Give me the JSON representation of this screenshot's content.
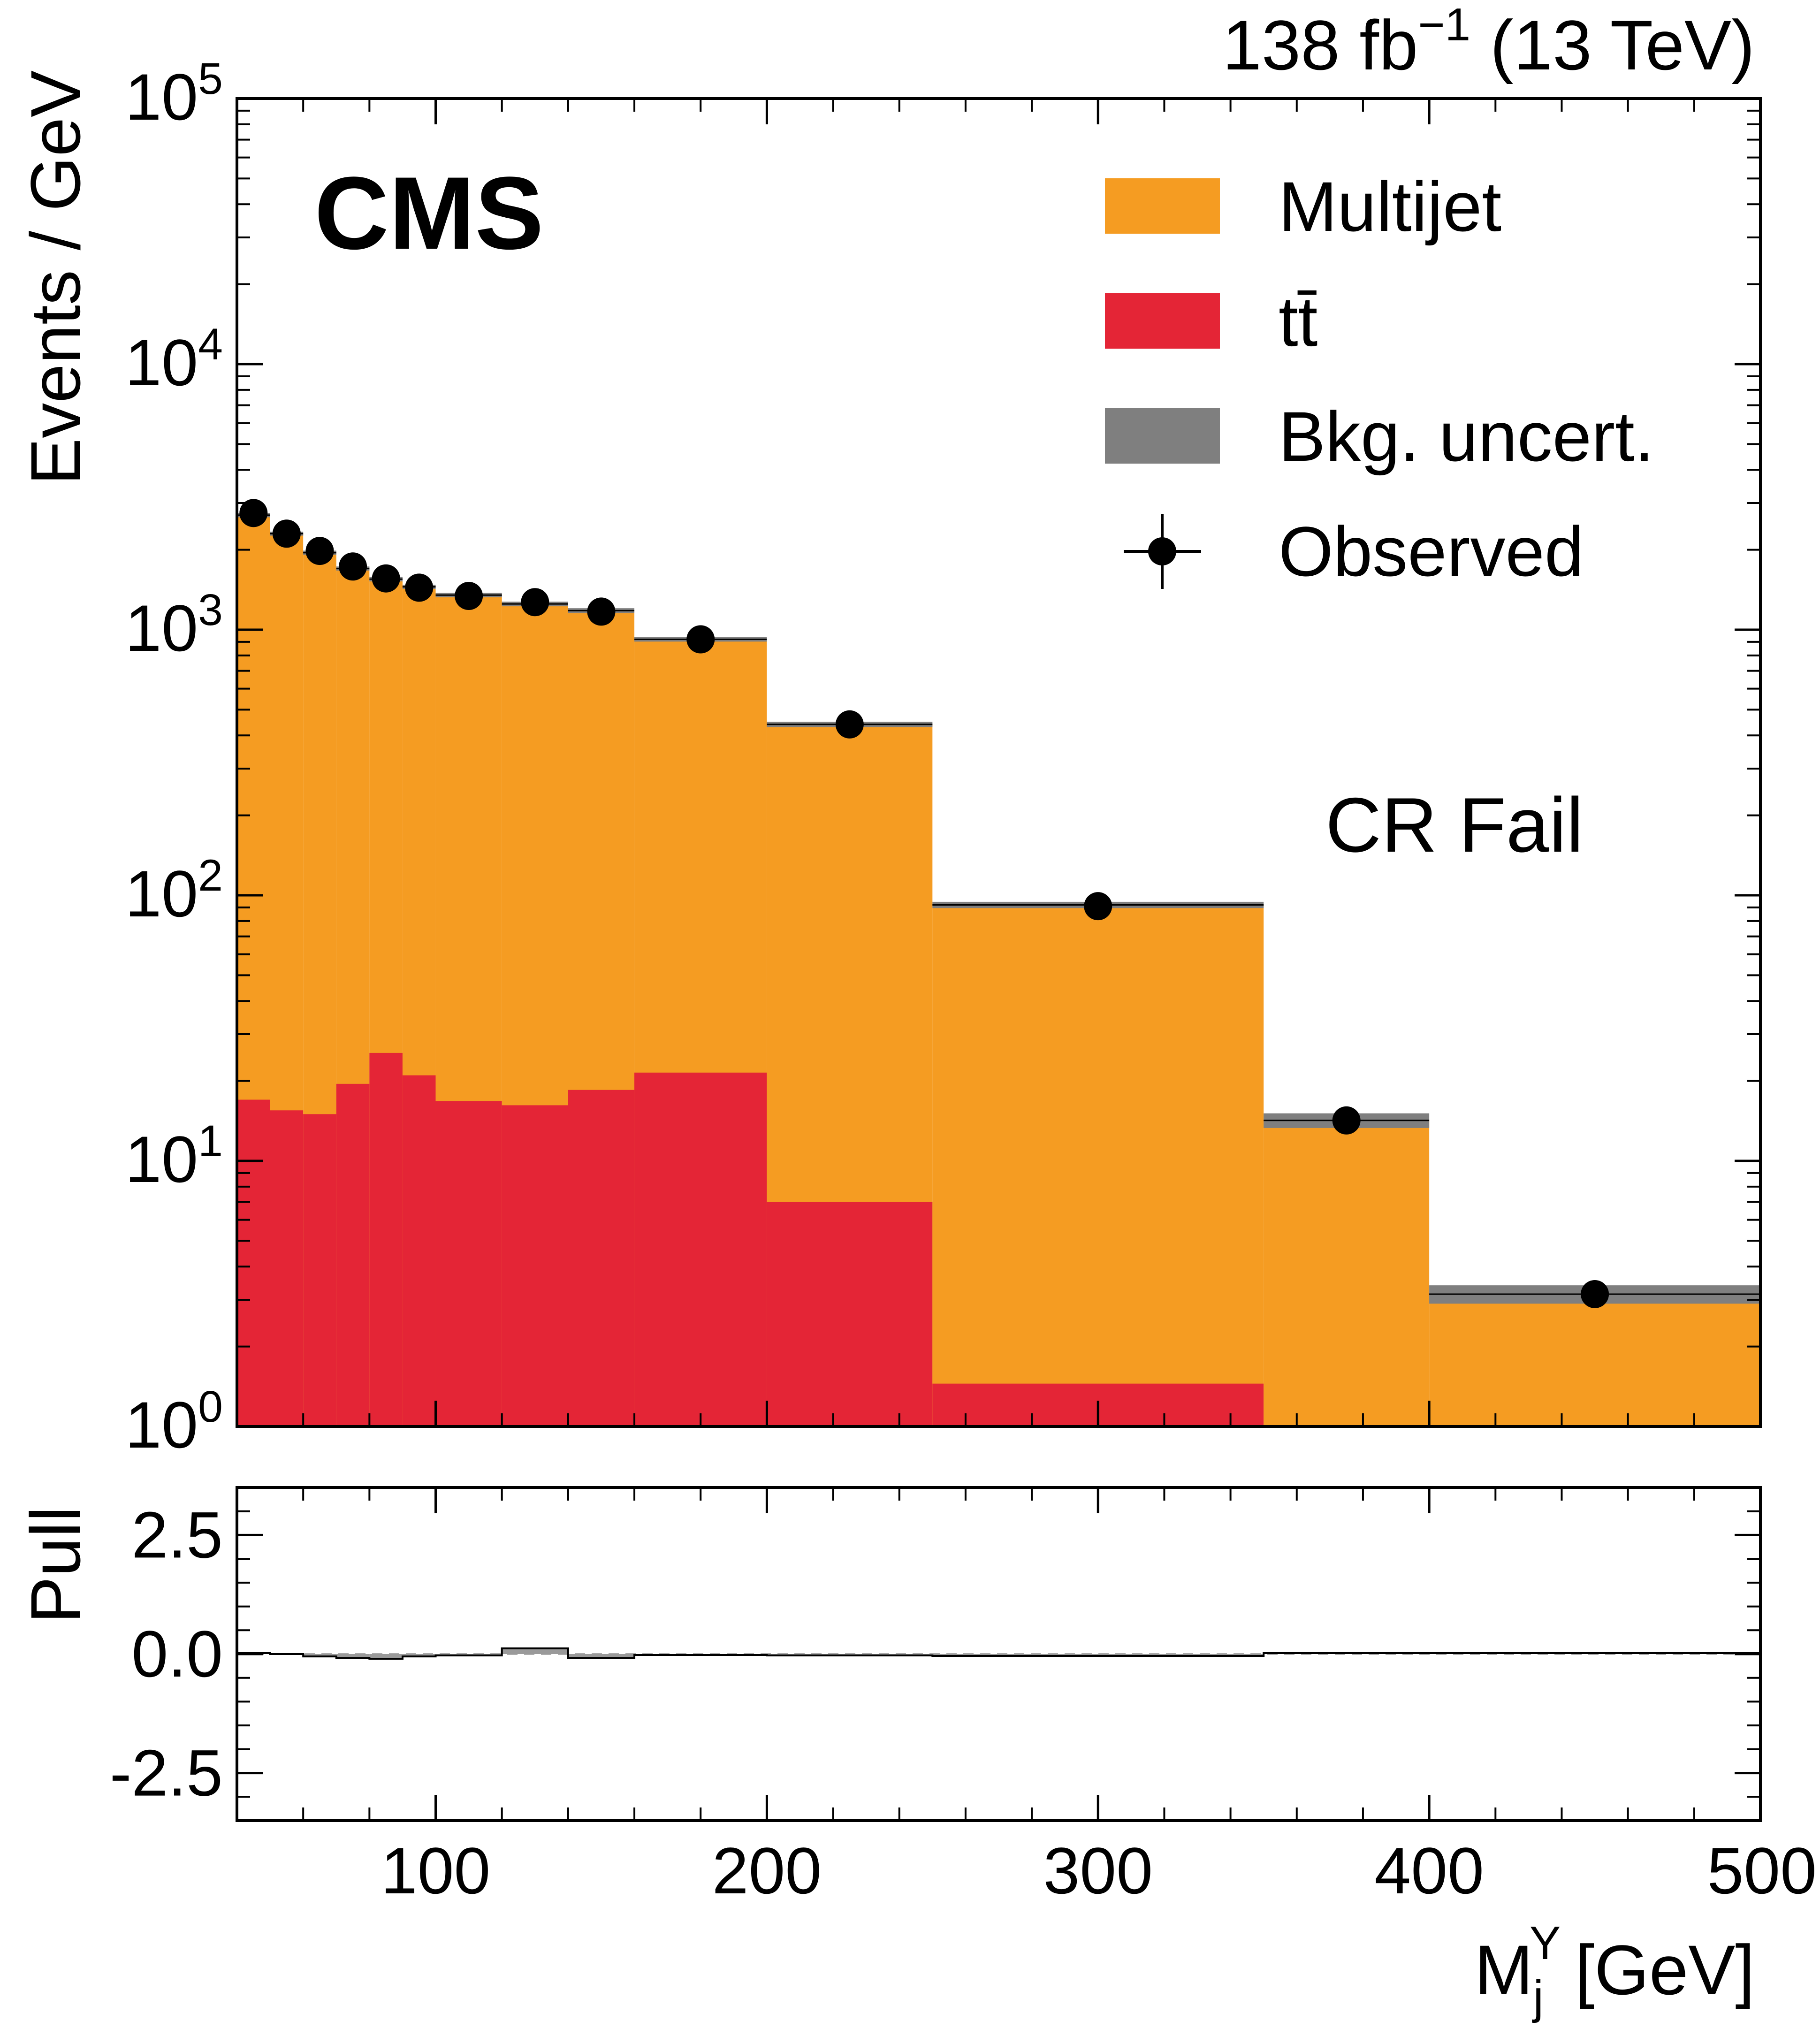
{
  "chart_data": [
    {
      "panel": "main",
      "type": "bar",
      "lumi_label": "138 fb",
      "lumi_exponent": "−1",
      "lumi_energy": "(13 TeV)",
      "experiment_label": "CMS",
      "region_label": "CR Fail",
      "ylabel": "Events / GeV",
      "yscale": "log",
      "ylim": [
        1,
        100000
      ],
      "xlim": [
        40,
        500
      ],
      "y_ticks": [
        {
          "base": "10",
          "exp": "0",
          "value": 1
        },
        {
          "base": "10",
          "exp": "1",
          "value": 10
        },
        {
          "base": "10",
          "exp": "2",
          "value": 100
        },
        {
          "base": "10",
          "exp": "3",
          "value": 1000
        },
        {
          "base": "10",
          "exp": "4",
          "value": 10000
        },
        {
          "base": "10",
          "exp": "5",
          "value": 100000
        }
      ],
      "bin_edges": [
        40,
        50,
        60,
        70,
        80,
        90,
        100,
        120,
        140,
        160,
        200,
        250,
        350,
        400,
        500
      ],
      "legend": [
        {
          "label": "Multijet",
          "color": "#f59c22",
          "kind": "box"
        },
        {
          "label": "tt̄",
          "color": "#e42536",
          "kind": "box"
        },
        {
          "label": "Bkg. uncert.",
          "color": "#7f7f7f",
          "kind": "box"
        },
        {
          "label": "Observed",
          "color": "#000000",
          "kind": "marker"
        }
      ],
      "series": [
        {
          "name": "Multijet",
          "color": "#f59c22",
          "stacked_total": [
            2700,
            2300,
            1950,
            1700,
            1550,
            1450,
            1350,
            1250,
            1180,
            920,
            440,
            92,
            14.2,
            3.15
          ]
        },
        {
          "name": "tt̄",
          "color": "#e42536",
          "values": [
            17,
            15.5,
            15,
            19.5,
            25.5,
            21,
            16.8,
            16.2,
            18.5,
            21.5,
            7.0,
            1.45,
            0,
            0
          ]
        },
        {
          "name": "Bkg. uncert.",
          "color": "#7f7f7f",
          "half_width": [
            50,
            40,
            35,
            30,
            30,
            25,
            25,
            25,
            25,
            18,
            10,
            2.5,
            0.9,
            0.25
          ]
        },
        {
          "name": "Observed",
          "color": "#000000",
          "x": [
            45,
            55,
            65,
            75,
            85,
            95,
            110,
            130,
            150,
            180,
            225,
            300,
            375,
            450
          ],
          "y": [
            2750,
            2300,
            1980,
            1730,
            1560,
            1440,
            1340,
            1270,
            1170,
            920,
            440,
            91,
            14.2,
            3.15
          ]
        }
      ]
    },
    {
      "panel": "pull",
      "type": "bar",
      "ylabel": "Pull",
      "xlabel": "M",
      "xlabel_sub": "j",
      "xlabel_sup": "Y",
      "xlabel_unit": "[GeV]",
      "ylim": [
        -3.5,
        3.5
      ],
      "xlim": [
        40,
        500
      ],
      "y_ticks": [
        "2.5",
        "0.0",
        "-2.5"
      ],
      "y_tick_values": [
        2.5,
        0,
        -2.5
      ],
      "x_ticks": [
        "100",
        "200",
        "300",
        "400",
        "500"
      ],
      "x_tick_values": [
        100,
        200,
        300,
        400,
        500
      ],
      "bin_edges": [
        40,
        50,
        60,
        70,
        80,
        90,
        100,
        120,
        140,
        160,
        200,
        250,
        350,
        400,
        500
      ],
      "values": [
        0.02,
        0.0,
        -0.05,
        -0.08,
        -0.1,
        -0.05,
        -0.03,
        0.12,
        -0.08,
        -0.02,
        -0.03,
        -0.04,
        0.02,
        0.02
      ]
    }
  ]
}
